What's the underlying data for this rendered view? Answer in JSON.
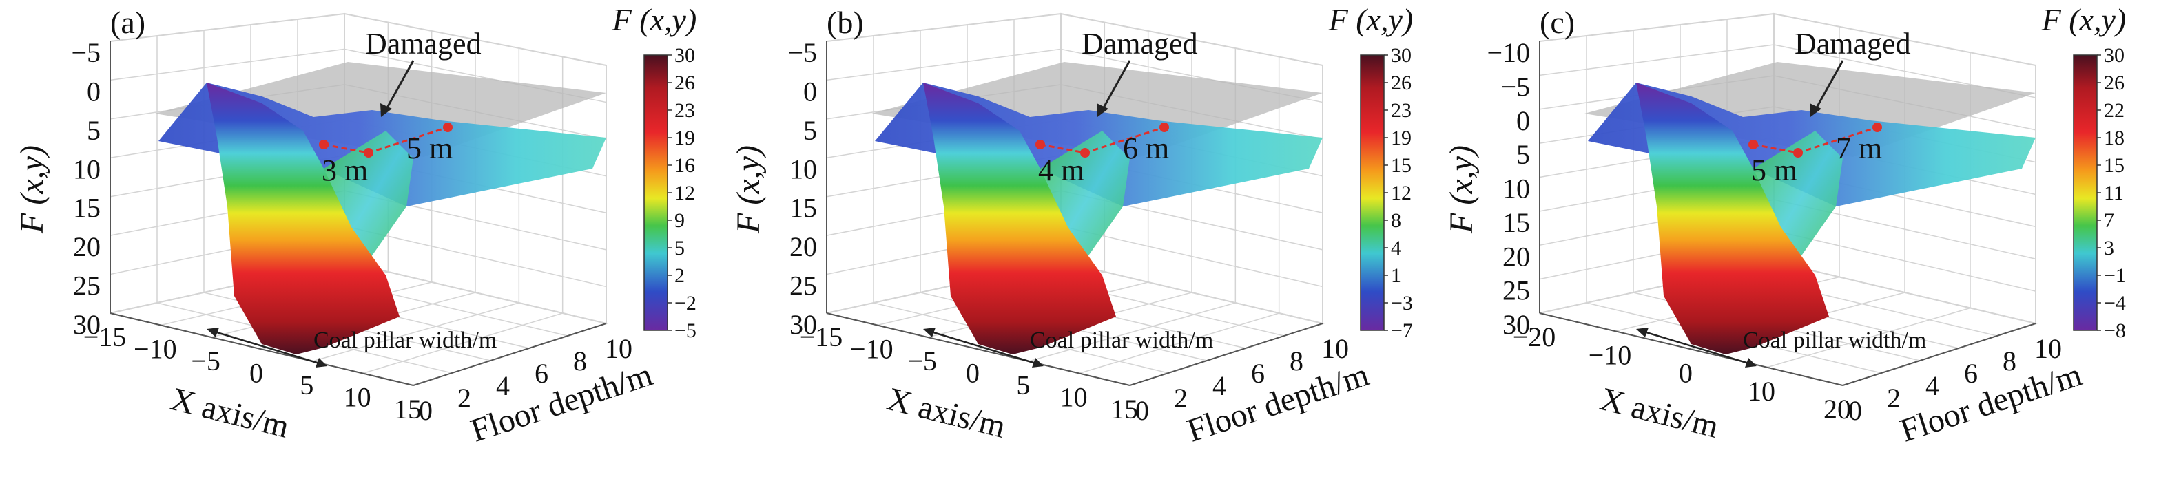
{
  "chart_data": [
    {
      "type": "surface3d",
      "panel": "(a)",
      "z_axis": {
        "label": "F (x,y)",
        "ticks": [
          "−5",
          "0",
          "5",
          "10",
          "15",
          "20",
          "25",
          "30"
        ]
      },
      "x_axis": {
        "label": "X axis/m",
        "ticks": [
          "−15",
          "−10",
          "−5",
          "0",
          "5",
          "10",
          "15"
        ]
      },
      "y_axis": {
        "label": "Floor depth/m",
        "ticks": [
          "0",
          "2",
          "4",
          "6",
          "8",
          "10"
        ]
      },
      "colorbar": {
        "title": "F (x,y)",
        "ticks": [
          "30",
          "26",
          "23",
          "19",
          "16",
          "12",
          "9",
          "5",
          "2",
          "−2",
          "−5"
        ],
        "range": [
          -5,
          30
        ]
      },
      "annotations": {
        "damaged": "Damaged",
        "pillar_width": "Coal pillar width/m",
        "depth_near": "3 m",
        "depth_far": "5 m"
      },
      "grid": true
    },
    {
      "type": "surface3d",
      "panel": "(b)",
      "z_axis": {
        "label": "F (x,y)",
        "ticks": [
          "−5",
          "0",
          "5",
          "10",
          "15",
          "20",
          "25",
          "30"
        ]
      },
      "x_axis": {
        "label": "X axis/m",
        "ticks": [
          "−15",
          "−10",
          "−5",
          "0",
          "5",
          "10",
          "15"
        ]
      },
      "y_axis": {
        "label": "Floor depth/m",
        "ticks": [
          "0",
          "2",
          "4",
          "6",
          "8",
          "10"
        ]
      },
      "colorbar": {
        "title": "F (x,y)",
        "ticks": [
          "30",
          "26",
          "23",
          "19",
          "15",
          "12",
          "8",
          "4",
          "1",
          "−3",
          "−7"
        ],
        "range": [
          -7,
          30
        ]
      },
      "annotations": {
        "damaged": "Damaged",
        "pillar_width": "Coal pillar width/m",
        "depth_near": "4 m",
        "depth_far": "6 m"
      },
      "grid": true
    },
    {
      "type": "surface3d",
      "panel": "(c)",
      "z_axis": {
        "label": "F (x,y)",
        "ticks": [
          "−10",
          "−5",
          "0",
          "5",
          "10",
          "15",
          "20",
          "25",
          "30"
        ]
      },
      "x_axis": {
        "label": "X axis/m",
        "ticks": [
          "−20",
          "−10",
          "0",
          "10",
          "20"
        ]
      },
      "y_axis": {
        "label": "Floor depth/m",
        "ticks": [
          "0",
          "2",
          "4",
          "6",
          "8",
          "10"
        ]
      },
      "colorbar": {
        "title": "F (x,y)",
        "ticks": [
          "30",
          "26",
          "22",
          "18",
          "15",
          "11",
          "7",
          "3",
          "−1",
          "−4",
          "−8"
        ],
        "range": [
          -8,
          30
        ]
      },
      "annotations": {
        "damaged": "Damaged",
        "pillar_width": "Coal pillar width/m",
        "depth_near": "5 m",
        "depth_far": "7 m"
      },
      "grid": true
    }
  ],
  "colors": {
    "surface_top": "#5a1a2a",
    "surface_red": "#e8262a",
    "surface_orange": "#f5a21e",
    "surface_yellow": "#e8e824",
    "surface_green": "#3fc24a",
    "surface_cyan": "#4fd0d8",
    "surface_blue": "#3550c8",
    "surface_purple": "#6a2aa0",
    "plane": "#b8b8b8",
    "marker": "#e0302a",
    "grid": "#d4d4d4"
  }
}
